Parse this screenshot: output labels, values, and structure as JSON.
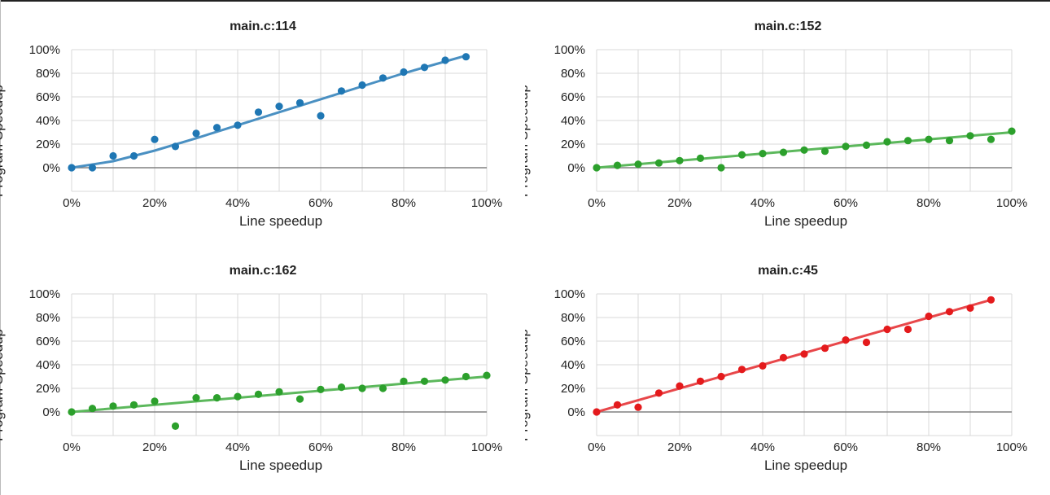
{
  "colors": {
    "blue_point": "#1f77b4",
    "blue_line": "#4a90c2",
    "green_point": "#2ca02c",
    "green_line": "#5cb85c",
    "red_point": "#e41a1c",
    "red_line": "#e8474a",
    "grid": "#d9d9d9",
    "zero_line": "#808080"
  },
  "chart_data": [
    {
      "type": "scatter",
      "title": "main.c:114",
      "xlabel": "Line speedup",
      "ylabel": "Program Speedup",
      "xlim": [
        0,
        100
      ],
      "ylim": [
        -20,
        100
      ],
      "grid": true,
      "x_ticks": [
        "0%",
        "20%",
        "40%",
        "60%",
        "80%",
        "100%"
      ],
      "y_ticks": [
        "0%",
        "20%",
        "40%",
        "60%",
        "80%",
        "100%"
      ],
      "point_color": "#1f77b4",
      "line_color": "#4a90c2",
      "points": [
        [
          0,
          0
        ],
        [
          5,
          0
        ],
        [
          10,
          10
        ],
        [
          15,
          10
        ],
        [
          20,
          24
        ],
        [
          25,
          18
        ],
        [
          30,
          29
        ],
        [
          35,
          34
        ],
        [
          40,
          36
        ],
        [
          45,
          47
        ],
        [
          50,
          52
        ],
        [
          55,
          55
        ],
        [
          60,
          44
        ],
        [
          65,
          65
        ],
        [
          70,
          70
        ],
        [
          75,
          76
        ],
        [
          80,
          81
        ],
        [
          85,
          85
        ],
        [
          90,
          91
        ],
        [
          95,
          94
        ]
      ],
      "fit": [
        [
          0,
          0
        ],
        [
          10,
          5.5
        ],
        [
          20,
          14.5
        ],
        [
          30,
          25
        ],
        [
          40,
          36
        ],
        [
          50,
          47
        ],
        [
          60,
          58
        ],
        [
          70,
          69
        ],
        [
          80,
          80
        ],
        [
          90,
          90
        ],
        [
          95,
          95
        ]
      ]
    },
    {
      "type": "scatter",
      "title": "main.c:152",
      "xlabel": "Line speedup",
      "ylabel": "Program Speedup",
      "xlim": [
        0,
        100
      ],
      "ylim": [
        -20,
        100
      ],
      "grid": true,
      "x_ticks": [
        "0%",
        "20%",
        "40%",
        "60%",
        "80%",
        "100%"
      ],
      "y_ticks": [
        "0%",
        "20%",
        "40%",
        "60%",
        "80%",
        "100%"
      ],
      "point_color": "#2ca02c",
      "line_color": "#5cb85c",
      "points": [
        [
          0,
          0
        ],
        [
          5,
          2
        ],
        [
          10,
          3
        ],
        [
          15,
          4
        ],
        [
          20,
          6
        ],
        [
          25,
          8
        ],
        [
          30,
          0
        ],
        [
          35,
          11
        ],
        [
          40,
          12
        ],
        [
          45,
          13
        ],
        [
          50,
          15
        ],
        [
          55,
          14
        ],
        [
          60,
          18
        ],
        [
          65,
          19
        ],
        [
          70,
          22
        ],
        [
          75,
          23
        ],
        [
          80,
          24
        ],
        [
          85,
          23
        ],
        [
          90,
          27
        ],
        [
          95,
          24
        ],
        [
          100,
          31
        ]
      ],
      "fit": [
        [
          0,
          0
        ],
        [
          100,
          30
        ]
      ]
    },
    {
      "type": "scatter",
      "title": "main.c:162",
      "xlabel": "Line speedup",
      "ylabel": "Program Speedup",
      "xlim": [
        0,
        100
      ],
      "ylim": [
        -20,
        100
      ],
      "grid": true,
      "x_ticks": [
        "0%",
        "20%",
        "40%",
        "60%",
        "80%",
        "100%"
      ],
      "y_ticks": [
        "0%",
        "20%",
        "40%",
        "60%",
        "80%",
        "100%"
      ],
      "point_color": "#2ca02c",
      "line_color": "#5cb85c",
      "points": [
        [
          0,
          0
        ],
        [
          5,
          3
        ],
        [
          10,
          5
        ],
        [
          15,
          6
        ],
        [
          20,
          9
        ],
        [
          25,
          -12
        ],
        [
          30,
          12
        ],
        [
          35,
          12
        ],
        [
          40,
          13
        ],
        [
          45,
          15
        ],
        [
          50,
          17
        ],
        [
          55,
          11
        ],
        [
          60,
          19
        ],
        [
          65,
          21
        ],
        [
          70,
          20
        ],
        [
          75,
          20
        ],
        [
          80,
          26
        ],
        [
          85,
          26
        ],
        [
          90,
          27
        ],
        [
          95,
          30
        ],
        [
          100,
          31
        ]
      ],
      "fit": [
        [
          0,
          0
        ],
        [
          100,
          30
        ]
      ]
    },
    {
      "type": "scatter",
      "title": "main.c:45",
      "xlabel": "Line speedup",
      "ylabel": "Program Speedup",
      "xlim": [
        0,
        100
      ],
      "ylim": [
        -20,
        100
      ],
      "grid": true,
      "x_ticks": [
        "0%",
        "20%",
        "40%",
        "60%",
        "80%",
        "100%"
      ],
      "y_ticks": [
        "0%",
        "20%",
        "40%",
        "60%",
        "80%",
        "100%"
      ],
      "point_color": "#e41a1c",
      "line_color": "#e8474a",
      "points": [
        [
          0,
          0
        ],
        [
          5,
          6
        ],
        [
          10,
          4
        ],
        [
          15,
          16
        ],
        [
          20,
          22
        ],
        [
          25,
          26
        ],
        [
          30,
          30
        ],
        [
          35,
          36
        ],
        [
          40,
          39
        ],
        [
          45,
          46
        ],
        [
          50,
          49
        ],
        [
          55,
          54
        ],
        [
          60,
          61
        ],
        [
          65,
          59
        ],
        [
          70,
          70
        ],
        [
          75,
          70
        ],
        [
          80,
          81
        ],
        [
          85,
          85
        ],
        [
          90,
          88
        ],
        [
          95,
          95
        ]
      ],
      "fit": [
        [
          0,
          0
        ],
        [
          95,
          95
        ]
      ]
    }
  ]
}
